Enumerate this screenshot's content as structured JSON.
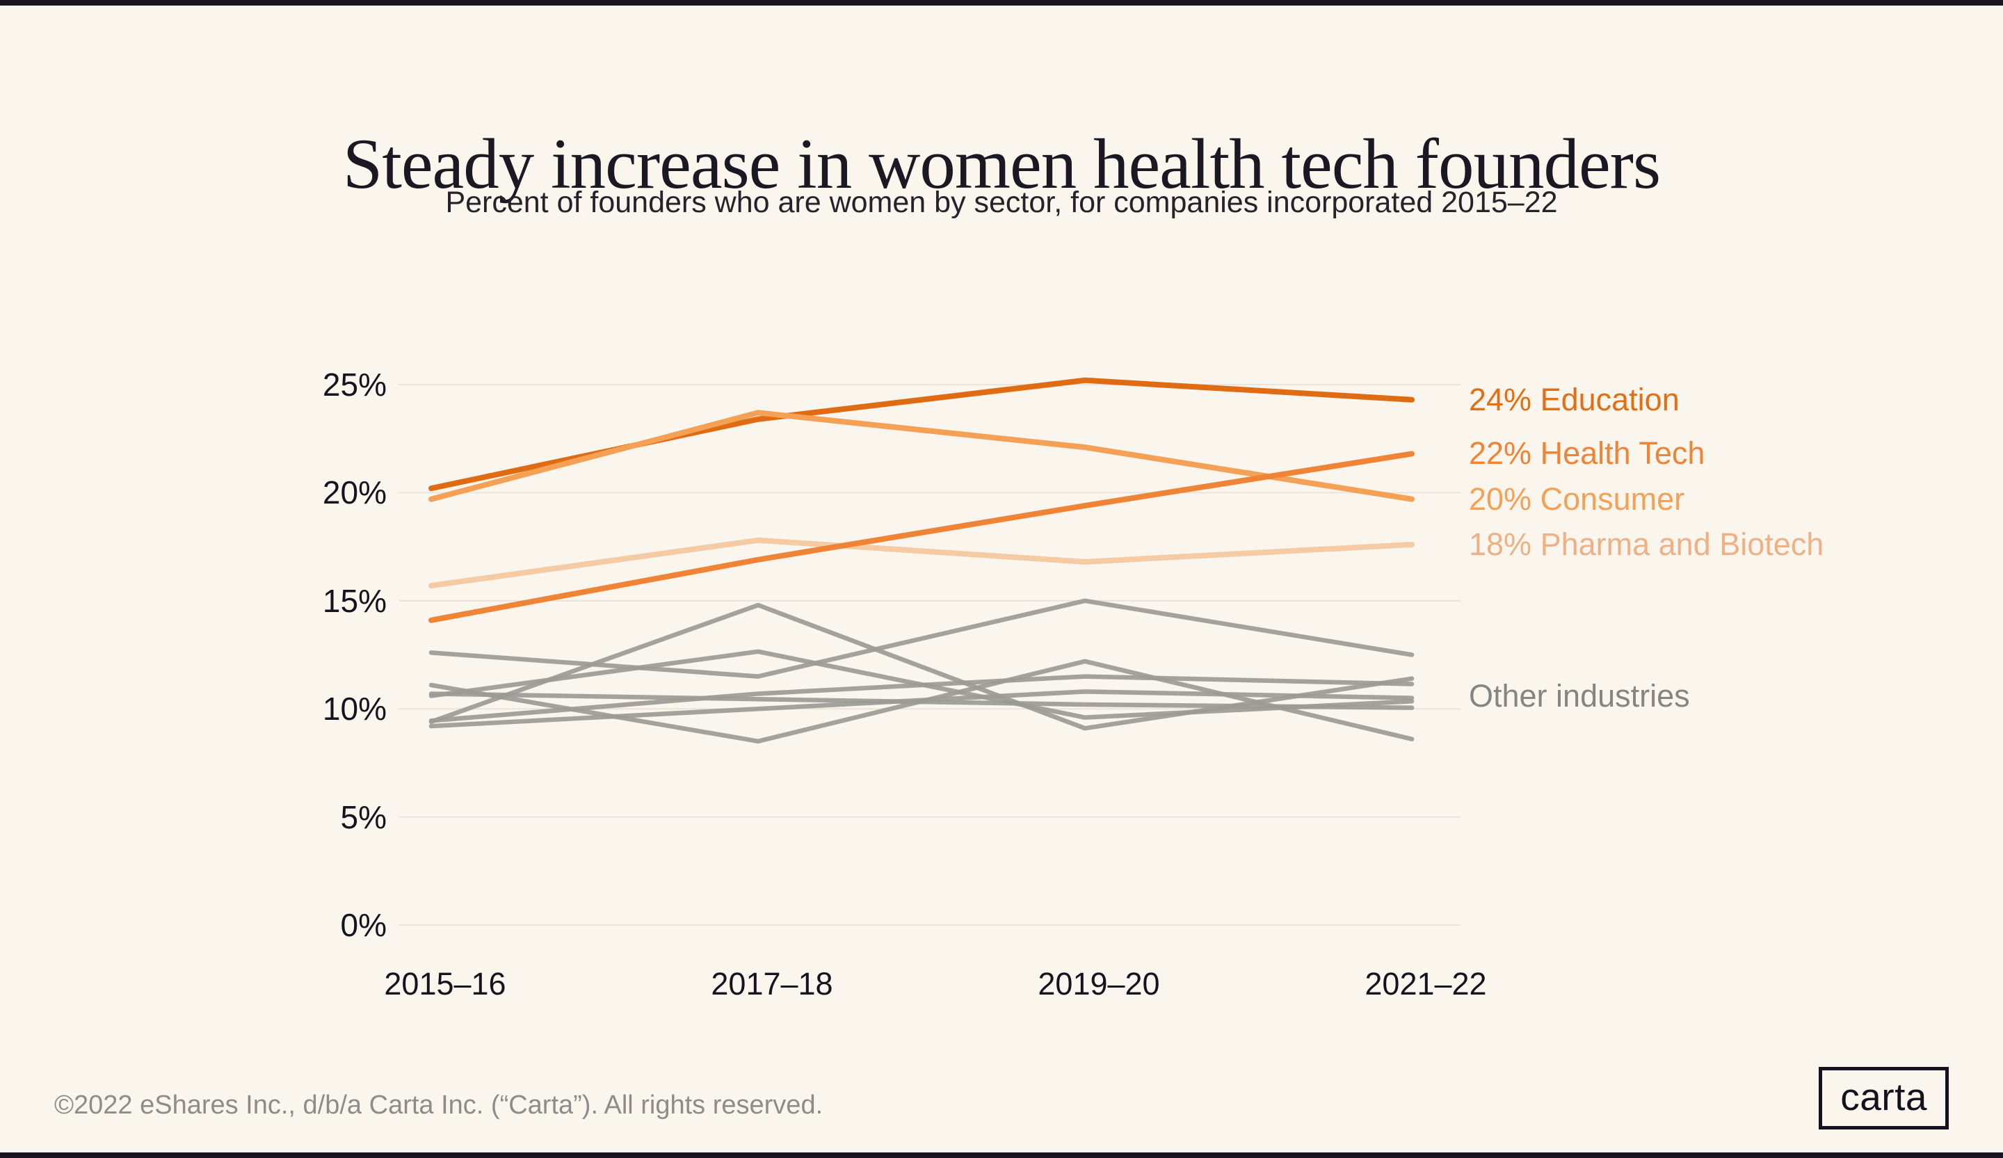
{
  "page": {
    "background_color": "#FAF6EE",
    "edge_bar_color": "#191322"
  },
  "header": {
    "title": "Steady increase in women health tech founders",
    "subtitle": "Percent of founders who are women by sector, for companies incorporated 2015–22"
  },
  "chart_data": {
    "type": "line",
    "title": "Steady increase in women health tech founders",
    "subtitle": "Percent of founders who are women by sector, for companies incorporated 2015–22",
    "x_categories": [
      "2015–16",
      "2017–18",
      "2019–20",
      "2021–22"
    ],
    "y_axis": {
      "unit": "%",
      "tick_labels": [
        "25%",
        "20%",
        "15%",
        "10%",
        "5%",
        "0%"
      ],
      "tick_values": [
        25,
        20,
        15,
        10,
        5,
        0
      ],
      "range": [
        0,
        26.5
      ]
    },
    "grid": true,
    "gridline_color": "#EAE4D9",
    "legend_position": "right-of-line-ends",
    "highlighted_series": [
      {
        "name": "Education",
        "end_label": "24% Education",
        "color": "#DF6B12",
        "label_color": "#E36F15",
        "values": [
          20.2,
          23.4,
          25.2,
          24.3
        ]
      },
      {
        "name": "Health Tech",
        "end_label": "22% Health Tech",
        "color": "#EF8336",
        "label_color": "#EF8336",
        "values": [
          14.1,
          16.9,
          19.4,
          21.8
        ]
      },
      {
        "name": "Consumer",
        "end_label": "20% Consumer",
        "color": "#F5A155",
        "label_color": "#F5A155",
        "values": [
          19.7,
          23.7,
          22.1,
          19.7
        ]
      },
      {
        "name": "Pharma and Biotech",
        "end_label": "18% Pharma and Biotech",
        "color": "#F4CBA4",
        "label_color": "#EDB185",
        "values": [
          15.7,
          17.8,
          16.8,
          17.6
        ]
      }
    ],
    "other_industries": {
      "label": "Other industries",
      "color": "#9B9A96",
      "label_color": "#87857F",
      "label_at_value": 10.6,
      "series": [
        [
          12.6,
          11.5,
          15.0,
          12.5
        ],
        [
          10.6,
          12.65,
          9.6,
          10.35
        ],
        [
          9.4,
          14.8,
          9.1,
          11.4
        ],
        [
          11.1,
          8.5,
          12.2,
          8.6
        ],
        [
          9.2,
          10.0,
          10.8,
          10.5
        ],
        [
          9.45,
          10.7,
          11.5,
          11.15
        ],
        [
          10.7,
          10.45,
          10.2,
          10.05
        ]
      ]
    }
  },
  "footer": {
    "copyright": "©2022 eShares Inc., d/b/a Carta Inc. (“Carta”). All rights reserved.",
    "logo_text": "carta"
  }
}
